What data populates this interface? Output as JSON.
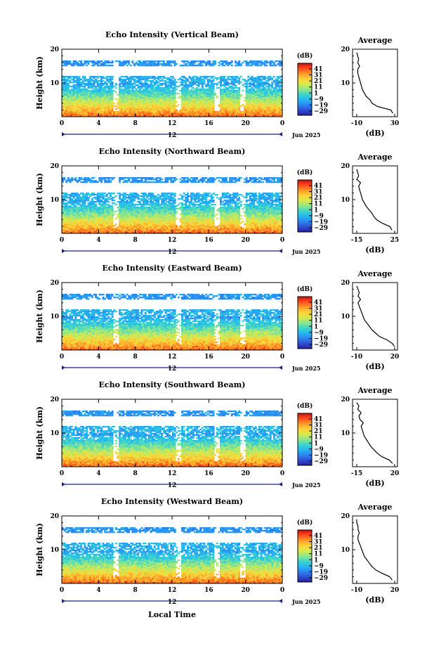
{
  "figure": {
    "bottom_xlabel": "Local Time",
    "time_ticks": [
      "0",
      "4",
      "8",
      "12",
      "16",
      "20",
      "0"
    ],
    "midnight_label": "12",
    "date_label": "Jun 2025",
    "ylabel": "Height (km)",
    "height_ticks": [
      "20",
      "10"
    ],
    "colorbar_unit": "(dB)",
    "colorbar_ticks": [
      "41",
      "31",
      "21",
      "11",
      "1",
      "−9",
      "−19",
      "−29"
    ],
    "avg_title": "Average",
    "avg_unit": "(dB)"
  },
  "colors": {
    "colormap": [
      "#2a1f9a",
      "#2e4fd6",
      "#2f86f0",
      "#23b8f2",
      "#3fd6c8",
      "#8ee68c",
      "#d8ea4a",
      "#ffd23a",
      "#ff9a26",
      "#ff4a1c",
      "#cc1010"
    ]
  },
  "chart_data": [
    {
      "type": "heatmap",
      "title": "Echo Intensity (Vertical Beam)",
      "x_range_hours": [
        0,
        24
      ],
      "y_range_km": [
        0,
        20
      ],
      "value_range_db": [
        -29,
        41
      ],
      "avg_xticks": [
        "-10",
        "30"
      ],
      "avg_xrange": [
        -10,
        30
      ],
      "avg_profile": {
        "height_km": [
          1,
          2,
          3,
          4,
          5,
          6,
          7,
          8,
          9,
          10,
          11,
          12,
          13,
          14,
          15,
          16,
          17,
          18,
          19
        ],
        "value_db": [
          28,
          26,
          12,
          6,
          4,
          0,
          -2,
          -4,
          -5,
          -6,
          -7,
          -8,
          -9,
          -9,
          -7,
          -9,
          -8,
          -9,
          -10
        ]
      }
    },
    {
      "type": "heatmap",
      "title": "Echo Intensity (Northward Beam)",
      "x_range_hours": [
        0,
        24
      ],
      "y_range_km": [
        0,
        20
      ],
      "value_range_db": [
        -29,
        41
      ],
      "avg_xticks": [
        "-15",
        "25"
      ],
      "avg_xrange": [
        -15,
        25
      ],
      "avg_profile": {
        "height_km": [
          1,
          2,
          3,
          4,
          5,
          6,
          7,
          8,
          9,
          10,
          11,
          12,
          13,
          14,
          15,
          16,
          17,
          18,
          19
        ],
        "value_db": [
          22,
          20,
          12,
          6,
          3,
          1,
          -2,
          -5,
          -7,
          -9,
          -10,
          -11,
          -12,
          -13,
          -11,
          -15,
          -13,
          -14,
          -15
        ]
      }
    },
    {
      "type": "heatmap",
      "title": "Echo Intensity (Eastward Beam)",
      "x_range_hours": [
        0,
        24
      ],
      "y_range_km": [
        0,
        20
      ],
      "value_range_db": [
        -29,
        41
      ],
      "avg_xticks": [
        "-10",
        "20"
      ],
      "avg_xrange": [
        -10,
        20
      ],
      "avg_profile": {
        "height_km": [
          1,
          2,
          3,
          4,
          5,
          6,
          7,
          8,
          9,
          10,
          11,
          12,
          13,
          14,
          15,
          16,
          17,
          18,
          19
        ],
        "value_db": [
          20,
          18,
          14,
          8,
          5,
          2,
          0,
          -2,
          -4,
          -5,
          -6,
          -7,
          -8,
          -9,
          -7,
          -9,
          -8,
          -9,
          -10
        ]
      }
    },
    {
      "type": "heatmap",
      "title": "Echo Intensity (Southward Beam)",
      "x_range_hours": [
        0,
        24
      ],
      "y_range_km": [
        0,
        20
      ],
      "value_range_db": [
        -29,
        41
      ],
      "avg_xticks": [
        "-15",
        "20"
      ],
      "avg_xrange": [
        -15,
        20
      ],
      "avg_profile": {
        "height_km": [
          1,
          2,
          3,
          4,
          5,
          6,
          7,
          8,
          9,
          10,
          11,
          12,
          13,
          14,
          15,
          16,
          17,
          18,
          19
        ],
        "value_db": [
          18,
          15,
          8,
          4,
          1,
          -2,
          -4,
          -6,
          -8,
          -9,
          -10,
          -11,
          -9,
          -12,
          -13,
          -11,
          -14,
          -13,
          -15
        ]
      }
    },
    {
      "type": "heatmap",
      "title": "Echo Intensity (Westward Beam)",
      "x_range_hours": [
        0,
        24
      ],
      "y_range_km": [
        0,
        20
      ],
      "value_range_db": [
        -29,
        41
      ],
      "avg_xticks": [
        "-10",
        "20"
      ],
      "avg_xrange": [
        -10,
        20
      ],
      "avg_profile": {
        "height_km": [
          1,
          2,
          3,
          4,
          5,
          6,
          7,
          8,
          9,
          10,
          11,
          12,
          13,
          14,
          15,
          16,
          17,
          18,
          19
        ],
        "value_db": [
          18,
          16,
          10,
          5,
          2,
          0,
          -2,
          -4,
          -5,
          -6,
          -7,
          -8,
          -9,
          -9,
          -8,
          -9,
          -9,
          -10,
          -10
        ]
      }
    }
  ]
}
